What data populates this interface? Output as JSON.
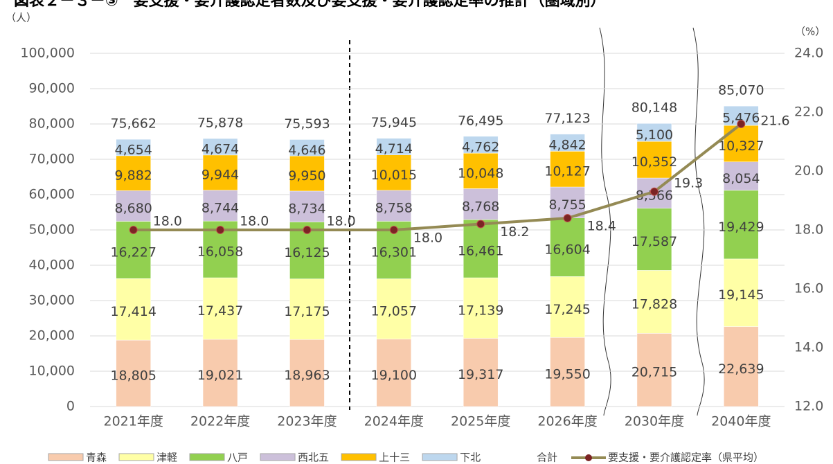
{
  "chart_data": {
    "type": "bar",
    "stacked": true,
    "title": "図表２－３－③　要支援・要介護認定者数及び要支援・要介護認定率の推計（圏域別）",
    "y_label": "（人）",
    "y2_label": "（%）",
    "categories": [
      "2021年度",
      "2022年度",
      "2023年度",
      "2024年度",
      "2025年度",
      "2026年度",
      "2030年度",
      "2040年度"
    ],
    "series": [
      {
        "name": "青森",
        "color": "#f8cbad",
        "values": [
          18805,
          19021,
          18963,
          19100,
          19317,
          19550,
          20715,
          22639
        ],
        "value_labels": [
          "18,805",
          "19,021",
          "18,963",
          "19,100",
          "19,317",
          "19,550",
          "20,715",
          "22,639"
        ]
      },
      {
        "name": "津軽",
        "color": "#ffffa6",
        "values": [
          17414,
          17437,
          17175,
          17057,
          17139,
          17245,
          17828,
          19145
        ],
        "value_labels": [
          "17,414",
          "17,437",
          "17,175",
          "17,057",
          "17,139",
          "17,245",
          "17,828",
          "19,145"
        ]
      },
      {
        "name": "八戸",
        "color": "#92d050",
        "values": [
          16227,
          16058,
          16125,
          16301,
          16461,
          16604,
          17587,
          19429
        ],
        "value_labels": [
          "16,227",
          "16,058",
          "16,125",
          "16,301",
          "16,461",
          "16,604",
          "17,587",
          "19,429"
        ]
      },
      {
        "name": "西北五",
        "color": "#ccc0da",
        "values": [
          8680,
          8744,
          8734,
          8758,
          8768,
          8755,
          8566,
          8054
        ],
        "value_labels": [
          "8,680",
          "8,744",
          "8,734",
          "8,758",
          "8,768",
          "8,755",
          "8,566",
          "8,054"
        ]
      },
      {
        "name": "上十三",
        "color": "#ffc000",
        "values": [
          9882,
          9944,
          9950,
          10015,
          10048,
          10127,
          10352,
          10327
        ],
        "value_labels": [
          "9,882",
          "9,944",
          "9,950",
          "10,015",
          "10,048",
          "10,127",
          "10,352",
          "10,327"
        ]
      },
      {
        "name": "下北",
        "color": "#bdd7ee",
        "values": [
          4654,
          4674,
          4646,
          4714,
          4762,
          4842,
          5100,
          5476
        ],
        "value_labels": [
          "4,654",
          "4,674",
          "4,646",
          "4,714",
          "4,762",
          "4,842",
          "5,100",
          "5,476"
        ]
      }
    ],
    "total": {
      "name": "合計",
      "values": [
        75662,
        75878,
        75593,
        75945,
        76495,
        77123,
        80148,
        85070
      ],
      "value_labels": [
        "75,662",
        "75,878",
        "75,593",
        "75,945",
        "76,495",
        "77,123",
        "80,148",
        "85,070"
      ]
    },
    "line": {
      "name": "要支援・要介護認定率（県平均）",
      "type": "line",
      "axis": "y2",
      "color": "#948a54",
      "marker_color": "#7b2424",
      "values": [
        18.0,
        18.0,
        18.0,
        18.0,
        18.2,
        18.4,
        19.3,
        21.6
      ],
      "value_labels": [
        "18.0",
        "18.0",
        "18.0",
        "18.0",
        "18.2",
        "18.4",
        "19.3",
        "21.6"
      ]
    },
    "ylim": [
      0,
      100000
    ],
    "yticks": [
      0,
      {
        "value": 10000,
        "label": "10,000"
      },
      {
        "value": 20000,
        "label": "20,000"
      },
      {
        "value": 30000,
        "label": "30,000"
      },
      {
        "value": 40000,
        "label": "40,000"
      },
      {
        "value": 50000,
        "label": "50,000"
      },
      {
        "value": 60000,
        "label": "60,000"
      },
      {
        "value": 70000,
        "label": "70,000"
      },
      {
        "value": 80000,
        "label": "80,000"
      },
      {
        "value": 90000,
        "label": "90,000"
      },
      {
        "value": 100000,
        "label": "100,000"
      }
    ],
    "y2lim": [
      12,
      24
    ],
    "y2ticks": [
      {
        "value": 12,
        "label": "12.0"
      },
      {
        "value": 14,
        "label": "14.0"
      },
      {
        "value": 16,
        "label": "16.0"
      },
      {
        "value": 18,
        "label": "18.0"
      },
      {
        "value": 20,
        "label": "20.0"
      },
      {
        "value": 22,
        "label": "22.0"
      },
      {
        "value": 24,
        "label": "24.0"
      }
    ],
    "grid": true
  }
}
